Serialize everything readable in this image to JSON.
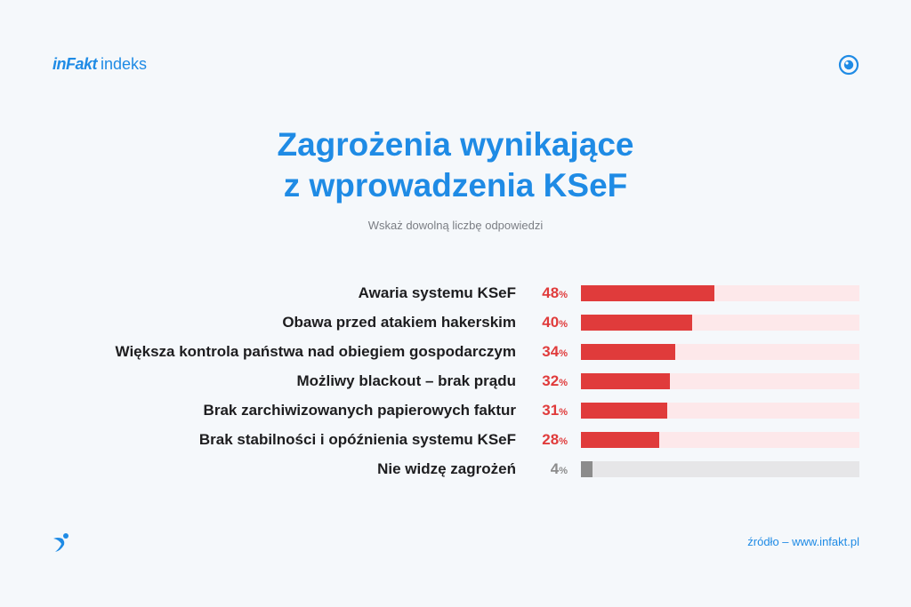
{
  "brand": {
    "name": "inFakt",
    "product": "indeks"
  },
  "title_lines": [
    "Zagrożenia wynikające",
    "z wprowadzenia KSeF"
  ],
  "subtitle": "Wskaż dowolną liczbę odpowiedzi",
  "source": "źródło – www.infakt.pl",
  "colors": {
    "accent": "#1f8be5",
    "bar_red": "#e03b3b",
    "track_red": "#fde8ea",
    "bar_gray": "#8c8c8c",
    "track_gray": "#e6e6e8"
  },
  "chart_data": {
    "type": "bar",
    "orientation": "horizontal",
    "title": "Zagrożenia wynikające z wprowadzenia KSeF",
    "subtitle": "Wskaż dowolną liczbę odpowiedzi",
    "unit": "%",
    "xlim": [
      0,
      100
    ],
    "categories": [
      "Awaria systemu KSeF",
      "Obawa przed atakiem hakerskim",
      "Większa kontrola państwa nad obiegiem gospodarczym",
      "Możliwy blackout – brak prądu",
      "Brak zarchiwizowanych papierowych faktur",
      "Brak stabilności i opóźnienia systemu KSeF",
      "Nie widzę zagrożeń"
    ],
    "values": [
      48,
      40,
      34,
      32,
      31,
      28,
      4
    ],
    "highlight": [
      "red",
      "red",
      "red",
      "red",
      "red",
      "red",
      "gray"
    ]
  }
}
